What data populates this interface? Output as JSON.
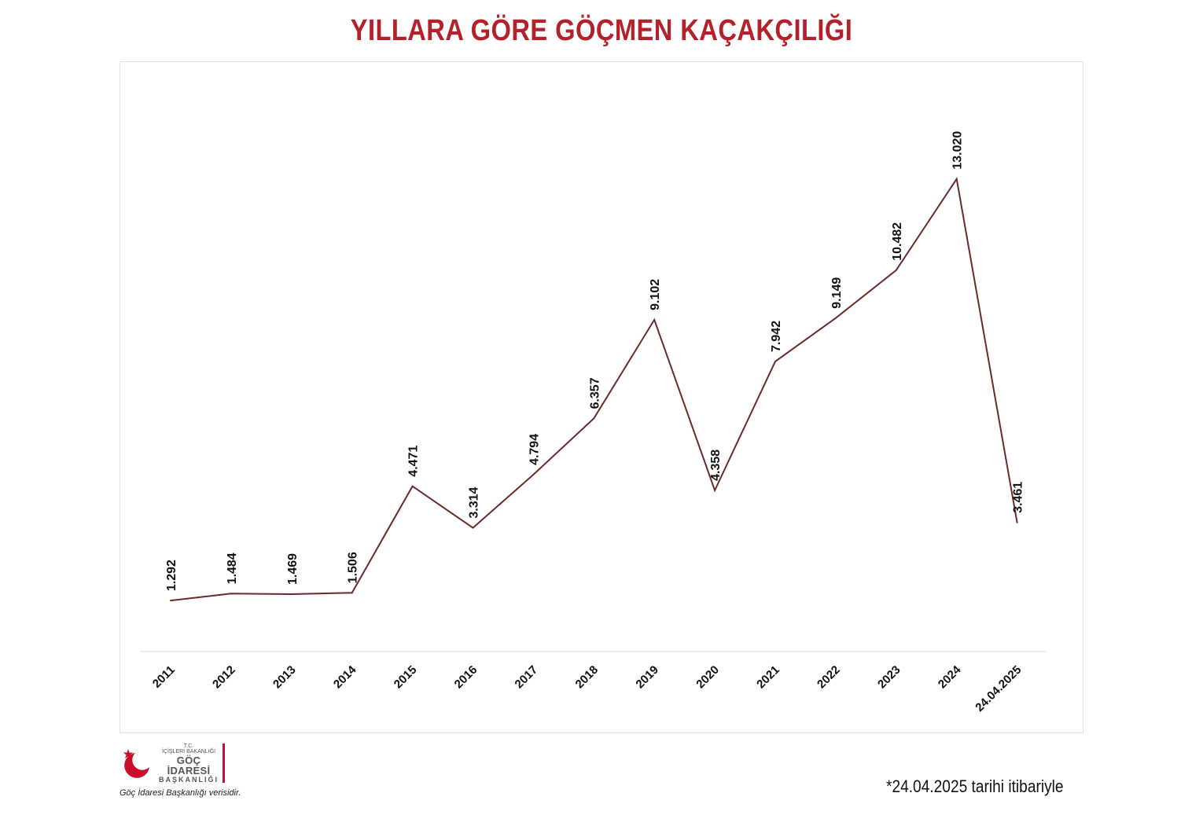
{
  "title": "YILLARA GÖRE GÖÇMEN KAÇAKÇILIĞI",
  "colors": {
    "title": "#b5212b",
    "line": "#6b2a2a",
    "axis": "#d9d9d9",
    "logo_red": "#c8102e"
  },
  "chart_data": {
    "type": "line",
    "title": "YILLARA GÖRE GÖÇMEN KAÇAKÇILIĞI",
    "categories": [
      "2011",
      "2012",
      "2013",
      "2014",
      "2015",
      "2016",
      "2017",
      "2018",
      "2019",
      "2020",
      "2021",
      "2022",
      "2023",
      "2024",
      "24.04.2025"
    ],
    "values": [
      1292,
      1484,
      1469,
      1506,
      4471,
      3314,
      4794,
      6357,
      9102,
      4358,
      7942,
      9149,
      10482,
      13020,
      3461
    ],
    "labels": [
      "1.292",
      "1.484",
      "1.469",
      "1.506",
      "4.471",
      "3.314",
      "4.794",
      "6.357",
      "9.102",
      "4.358",
      "7.942",
      "9.149",
      "10.482",
      "13.020",
      "3.461"
    ],
    "ylim": [
      0,
      14000
    ],
    "grid": false,
    "legend": "none"
  },
  "logo": {
    "tc": "T.C.",
    "line1": "İÇİŞLERİ BAKANLIĞI",
    "line2": "GÖÇ İDARESİ",
    "line3": "BAŞKANLIĞI"
  },
  "source_note": "Göç İdaresi Başkanlığı verisidir.",
  "footnote": "*24.04.2025 tarihi itibariyle"
}
